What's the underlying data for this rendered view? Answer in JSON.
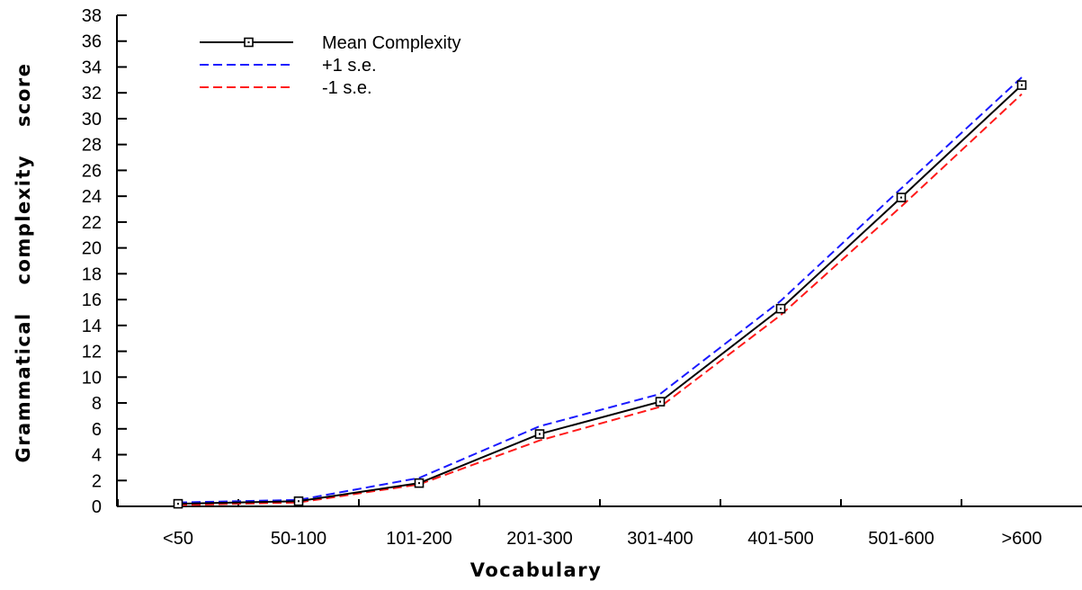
{
  "chart_data": {
    "type": "line",
    "xlabel": "Vocabulary",
    "ylabel": "Grammatical complexity score",
    "categories": [
      "<50",
      "50-100",
      "101-200",
      "201-300",
      "301-400",
      "401-500",
      "501-600",
      ">600"
    ],
    "ylim": [
      0,
      38
    ],
    "yticks": [
      0,
      2,
      4,
      6,
      8,
      10,
      12,
      14,
      16,
      18,
      20,
      22,
      24,
      26,
      28,
      30,
      32,
      34,
      36,
      38
    ],
    "grid": false,
    "legend": "top-left",
    "series": [
      {
        "name": "Mean Complexity",
        "values": [
          0.2,
          0.4,
          1.8,
          5.6,
          8.1,
          15.3,
          23.9,
          32.6
        ],
        "color": "#000000",
        "style": "solid",
        "marker": "square"
      },
      {
        "name": "+1 s.e.",
        "values": [
          0.3,
          0.5,
          2.2,
          6.2,
          8.7,
          15.9,
          24.6,
          33.2
        ],
        "color": "#1a1aff",
        "style": "dashed",
        "marker": "none"
      },
      {
        "name": "-1 s.e.",
        "values": [
          0.1,
          0.3,
          1.7,
          5.1,
          7.7,
          14.8,
          23.2,
          31.9
        ],
        "color": "#ff1a1a",
        "style": "dashed",
        "marker": "none"
      }
    ]
  }
}
